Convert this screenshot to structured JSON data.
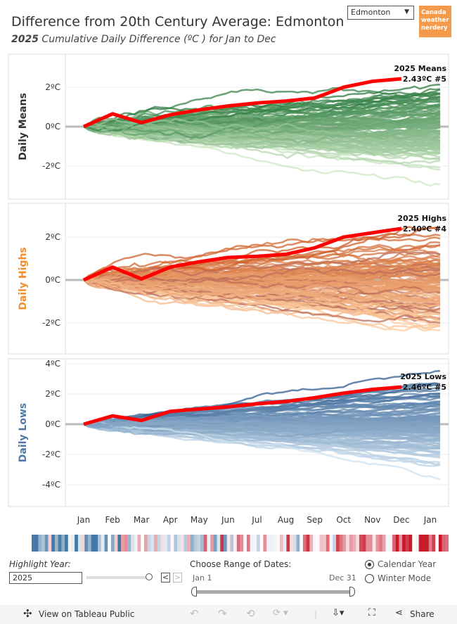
{
  "header": {
    "title": "Difference from 20th Century Average: Edmonton",
    "subtitle_year": "2025",
    "subtitle_rest": " Cumulative Daily Difference (ºC ) for Jan to Dec"
  },
  "city_select": {
    "value": "Edmonton"
  },
  "logo": {
    "text": "Canada weather nerdery"
  },
  "chart_data": {
    "type": "line",
    "x_ticks": [
      "Jan",
      "Feb",
      "Mar",
      "Apr",
      "May",
      "Jun",
      "Jul",
      "Aug",
      "Sep",
      "Oct",
      "Nov",
      "Dec",
      "Jan"
    ],
    "panels": [
      {
        "title": "Daily Means",
        "ylim": [
          -3.5,
          3.5
        ],
        "y_ticks": [
          2,
          0,
          -2
        ],
        "y_tick_labels": [
          "2ºC",
          "0ºC",
          "-2ºC"
        ],
        "title_color": "#333333",
        "highlight": {
          "name": "2025",
          "values": [
            0,
            0.65,
            0.2,
            0.6,
            0.85,
            1.05,
            1.2,
            1.3,
            1.45,
            2.0,
            2.3,
            2.43
          ]
        },
        "annotation": [
          "2025 Means",
          "2.43ºC #5"
        ]
      },
      {
        "title": "Daily Highs",
        "ylim": [
          -3.5,
          3.5
        ],
        "y_ticks": [
          2,
          0,
          -2
        ],
        "y_tick_labels": [
          "2ºC",
          "0ºC",
          "-2ºC"
        ],
        "title_color": "#f28e2b",
        "highlight": {
          "name": "2025",
          "values": [
            0,
            0.6,
            0.05,
            0.6,
            0.85,
            1.05,
            1.1,
            1.2,
            1.5,
            2.0,
            2.2,
            2.4
          ]
        },
        "annotation": [
          "2025 Highs",
          "2.40ºC #4"
        ]
      },
      {
        "title": "Daily Lows",
        "ylim": [
          -5.2,
          5.2
        ],
        "y_ticks": [
          4,
          2,
          0,
          -2,
          -4
        ],
        "y_tick_labels": [
          "4ºC",
          "2ºC",
          "0ºC",
          "-2ºC",
          "-4ºC"
        ],
        "title_color": "#4e79a7",
        "highlight": {
          "name": "2025",
          "values": [
            0,
            0.55,
            0.25,
            0.85,
            1.0,
            1.15,
            1.35,
            1.5,
            1.75,
            2.05,
            2.3,
            2.46
          ]
        },
        "annotation": [
          "2025 Lows",
          "2.46ºC #5"
        ]
      }
    ],
    "highlight_color": "#ff0000"
  },
  "controls": {
    "highlight_label": "Highlight Year:",
    "year": "2025",
    "range_label": "Choose Range of Dates:",
    "range_start": "Jan 1",
    "range_end": "Dec 31",
    "prev": "<",
    "next": ">",
    "mode_options": [
      "Calendar Year",
      "Winter Mode"
    ],
    "mode_selected": "Calendar Year"
  },
  "toolbar": {
    "view_label": "View on Tableau Public",
    "share_label": "Share"
  }
}
